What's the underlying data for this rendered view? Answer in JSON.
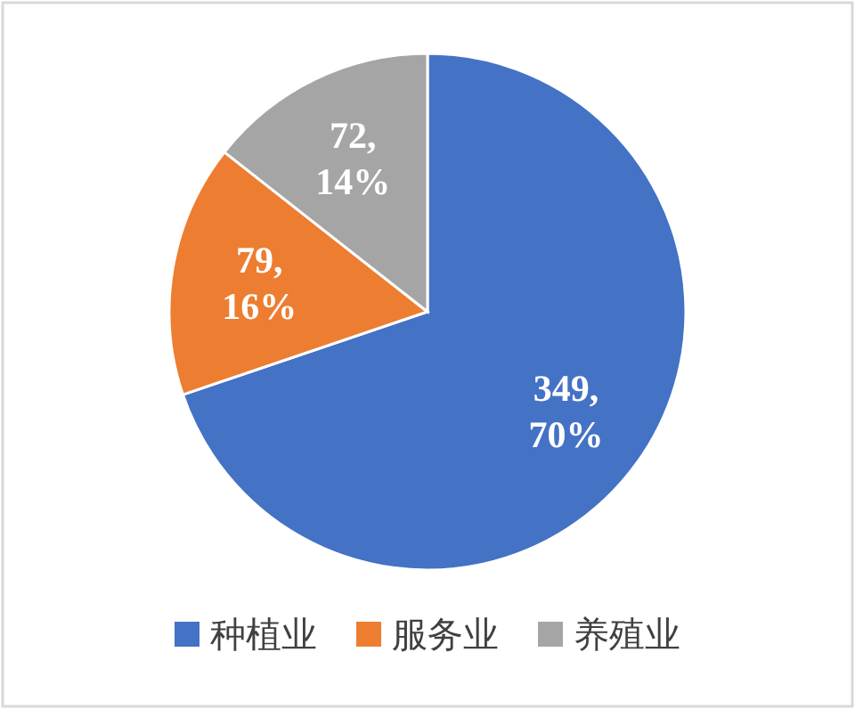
{
  "chart_data": {
    "type": "pie",
    "categories": [
      "种植业",
      "服务业",
      "养殖业"
    ],
    "values": [
      349,
      79,
      72
    ],
    "colors": [
      "#4472c4",
      "#ed7d31",
      "#a5a5a5"
    ],
    "value_labels": [
      "349, 70%",
      "79, 16%",
      "72, 14%"
    ],
    "legend": "bottom"
  }
}
